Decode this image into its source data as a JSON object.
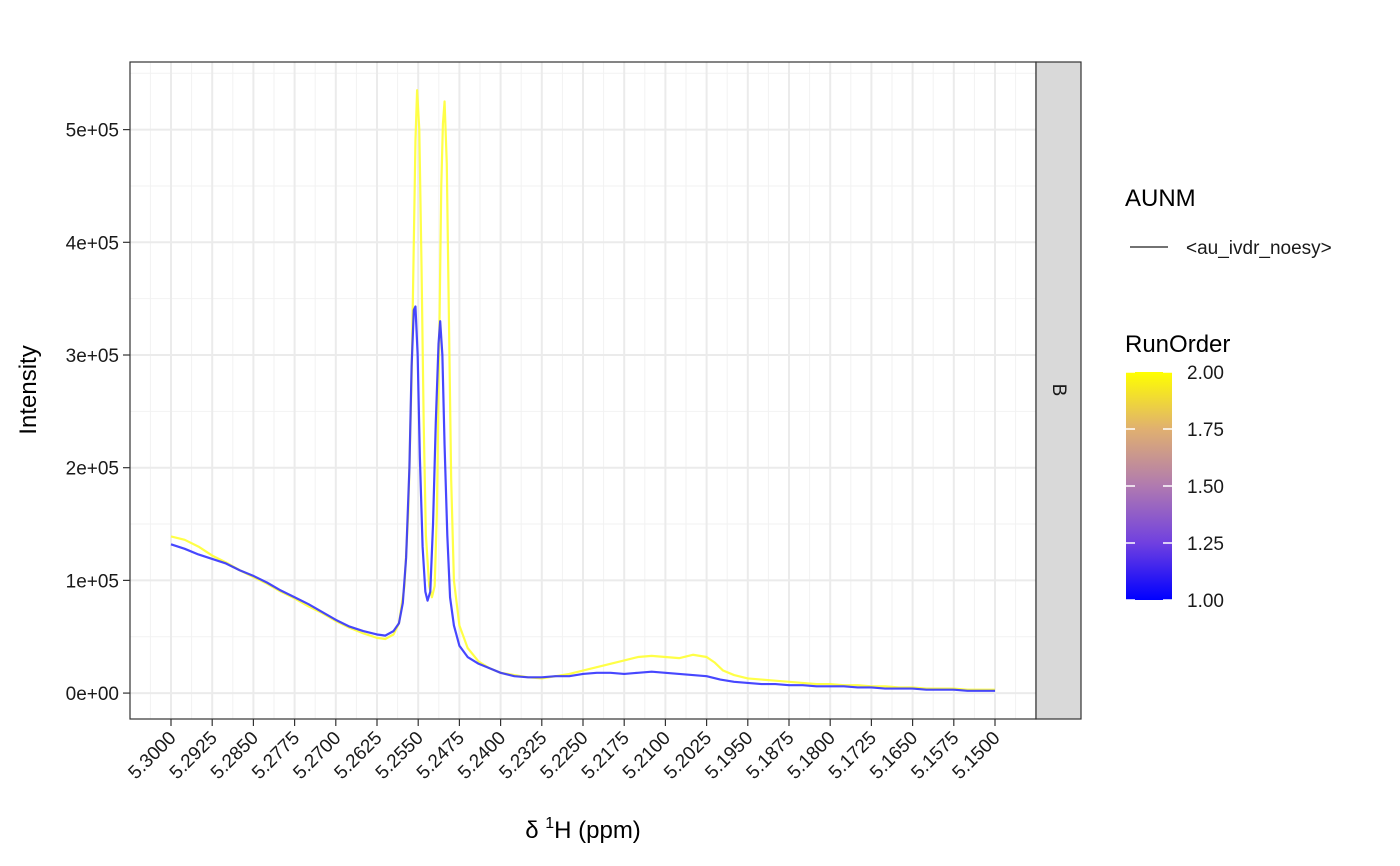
{
  "chart_data": {
    "type": "line",
    "xlabel": "δ ¹H (ppm)",
    "xlabel_main": "δ ",
    "xlabel_sup": "1",
    "xlabel_tail": "H (ppm)",
    "ylabel": "Intensity",
    "xlim": [
      5.3,
      5.15
    ],
    "x_reversed": true,
    "ylim": [
      -23000,
      560000
    ],
    "grid": true,
    "x_ticks": [
      "5.3000",
      "5.2925",
      "5.2850",
      "5.2775",
      "5.2700",
      "5.2625",
      "5.2550",
      "5.2475",
      "5.2400",
      "5.2325",
      "5.2250",
      "5.2175",
      "5.2100",
      "5.2025",
      "5.1950",
      "5.1875",
      "5.1800",
      "5.1725",
      "5.1650",
      "5.1575",
      "5.1500"
    ],
    "y_ticks": [
      {
        "value": 0,
        "label": "0e+00"
      },
      {
        "value": 100000,
        "label": "1e+05"
      },
      {
        "value": 200000,
        "label": "2e+05"
      },
      {
        "value": 300000,
        "label": "3e+05"
      },
      {
        "value": 400000,
        "label": "4e+05"
      },
      {
        "value": 500000,
        "label": "5e+05"
      }
    ],
    "facet_label": "B",
    "series": [
      {
        "run_order": 2.0,
        "color": "#ffff33",
        "points": [
          [
            5.3,
            139000
          ],
          [
            5.2975,
            136000
          ],
          [
            5.295,
            130000
          ],
          [
            5.2925,
            122000
          ],
          [
            5.29,
            116000
          ],
          [
            5.2875,
            109000
          ],
          [
            5.285,
            103000
          ],
          [
            5.2825,
            97000
          ],
          [
            5.28,
            90000
          ],
          [
            5.2775,
            84000
          ],
          [
            5.275,
            77000
          ],
          [
            5.2725,
            71000
          ],
          [
            5.27,
            64000
          ],
          [
            5.2675,
            58000
          ],
          [
            5.265,
            53000
          ],
          [
            5.2625,
            49000
          ],
          [
            5.261,
            48000
          ],
          [
            5.2595,
            52000
          ],
          [
            5.2585,
            62000
          ],
          [
            5.2575,
            95000
          ],
          [
            5.2568,
            160000
          ],
          [
            5.2562,
            280000
          ],
          [
            5.2558,
            400000
          ],
          [
            5.2555,
            490000
          ],
          [
            5.2552,
            535000
          ],
          [
            5.2548,
            500000
          ],
          [
            5.2544,
            380000
          ],
          [
            5.254,
            240000
          ],
          [
            5.2536,
            140000
          ],
          [
            5.253,
            95000
          ],
          [
            5.2525,
            85000
          ],
          [
            5.252,
            95000
          ],
          [
            5.2516,
            160000
          ],
          [
            5.2512,
            300000
          ],
          [
            5.2508,
            450000
          ],
          [
            5.2505,
            505000
          ],
          [
            5.2502,
            525000
          ],
          [
            5.2498,
            470000
          ],
          [
            5.2494,
            330000
          ],
          [
            5.249,
            190000
          ],
          [
            5.2485,
            100000
          ],
          [
            5.2475,
            60000
          ],
          [
            5.246,
            40000
          ],
          [
            5.244,
            28000
          ],
          [
            5.242,
            22000
          ],
          [
            5.24,
            18000
          ],
          [
            5.2375,
            16000
          ],
          [
            5.235,
            14000
          ],
          [
            5.2325,
            13000
          ],
          [
            5.23,
            15000
          ],
          [
            5.2275,
            17000
          ],
          [
            5.225,
            20000
          ],
          [
            5.2225,
            23000
          ],
          [
            5.22,
            26000
          ],
          [
            5.2175,
            29000
          ],
          [
            5.215,
            32000
          ],
          [
            5.2125,
            33000
          ],
          [
            5.21,
            32000
          ],
          [
            5.2075,
            31000
          ],
          [
            5.205,
            34000
          ],
          [
            5.2025,
            32000
          ],
          [
            5.201,
            27000
          ],
          [
            5.1995,
            20000
          ],
          [
            5.1975,
            16000
          ],
          [
            5.195,
            13000
          ],
          [
            5.1925,
            12000
          ],
          [
            5.19,
            11000
          ],
          [
            5.1875,
            10000
          ],
          [
            5.185,
            9000
          ],
          [
            5.1825,
            8000
          ],
          [
            5.18,
            8000
          ],
          [
            5.1775,
            7000
          ],
          [
            5.175,
            7000
          ],
          [
            5.1725,
            6000
          ],
          [
            5.17,
            6000
          ],
          [
            5.1675,
            5000
          ],
          [
            5.165,
            5000
          ],
          [
            5.1625,
            4000
          ],
          [
            5.16,
            4000
          ],
          [
            5.1575,
            4000
          ],
          [
            5.155,
            3000
          ],
          [
            5.1525,
            3000
          ],
          [
            5.15,
            3000
          ]
        ]
      },
      {
        "run_order": 1.0,
        "color": "#3333ff",
        "points": [
          [
            5.3,
            132000
          ],
          [
            5.2975,
            128000
          ],
          [
            5.295,
            123000
          ],
          [
            5.2925,
            119000
          ],
          [
            5.29,
            115000
          ],
          [
            5.2875,
            109000
          ],
          [
            5.285,
            104000
          ],
          [
            5.2825,
            98000
          ],
          [
            5.28,
            91000
          ],
          [
            5.2775,
            85000
          ],
          [
            5.275,
            79000
          ],
          [
            5.2725,
            72000
          ],
          [
            5.27,
            65000
          ],
          [
            5.2675,
            59000
          ],
          [
            5.265,
            55000
          ],
          [
            5.2625,
            52000
          ],
          [
            5.261,
            51000
          ],
          [
            5.2595,
            55000
          ],
          [
            5.2585,
            62000
          ],
          [
            5.2578,
            80000
          ],
          [
            5.2572,
            120000
          ],
          [
            5.2566,
            200000
          ],
          [
            5.2562,
            290000
          ],
          [
            5.2558,
            340000
          ],
          [
            5.2555,
            343000
          ],
          [
            5.2551,
            300000
          ],
          [
            5.2547,
            210000
          ],
          [
            5.2542,
            130000
          ],
          [
            5.2537,
            90000
          ],
          [
            5.2533,
            82000
          ],
          [
            5.2528,
            90000
          ],
          [
            5.2523,
            150000
          ],
          [
            5.2518,
            240000
          ],
          [
            5.2513,
            310000
          ],
          [
            5.251,
            330000
          ],
          [
            5.2506,
            300000
          ],
          [
            5.2502,
            220000
          ],
          [
            5.2497,
            140000
          ],
          [
            5.2492,
            85000
          ],
          [
            5.2485,
            60000
          ],
          [
            5.2475,
            42000
          ],
          [
            5.246,
            32000
          ],
          [
            5.244,
            26000
          ],
          [
            5.242,
            22000
          ],
          [
            5.24,
            18000
          ],
          [
            5.2375,
            15000
          ],
          [
            5.235,
            14000
          ],
          [
            5.2325,
            14000
          ],
          [
            5.23,
            15000
          ],
          [
            5.2275,
            15000
          ],
          [
            5.225,
            17000
          ],
          [
            5.2225,
            18000
          ],
          [
            5.22,
            18000
          ],
          [
            5.2175,
            17000
          ],
          [
            5.215,
            18000
          ],
          [
            5.2125,
            19000
          ],
          [
            5.21,
            18000
          ],
          [
            5.2075,
            17000
          ],
          [
            5.205,
            16000
          ],
          [
            5.2025,
            15000
          ],
          [
            5.2,
            12000
          ],
          [
            5.1975,
            10000
          ],
          [
            5.195,
            9000
          ],
          [
            5.1925,
            8000
          ],
          [
            5.19,
            8000
          ],
          [
            5.1875,
            7000
          ],
          [
            5.185,
            7000
          ],
          [
            5.1825,
            6000
          ],
          [
            5.18,
            6000
          ],
          [
            5.1775,
            6000
          ],
          [
            5.175,
            5000
          ],
          [
            5.1725,
            5000
          ],
          [
            5.17,
            4000
          ],
          [
            5.1675,
            4000
          ],
          [
            5.165,
            4000
          ],
          [
            5.1625,
            3000
          ],
          [
            5.16,
            3000
          ],
          [
            5.1575,
            3000
          ],
          [
            5.155,
            2000
          ],
          [
            5.1525,
            2000
          ],
          [
            5.15,
            2000
          ]
        ]
      }
    ],
    "legend": {
      "placement": "right",
      "linetype_title": "AUNM",
      "linetype_item": "<au_ivdr_noesy>",
      "color_title": "RunOrder",
      "color_range": [
        1.0,
        2.0
      ],
      "color_low": "#0000ff",
      "color_high": "#ffff00",
      "color_ticks": [
        {
          "value": 2.0,
          "label": "2.00"
        },
        {
          "value": 1.75,
          "label": "1.75"
        },
        {
          "value": 1.5,
          "label": "1.50"
        },
        {
          "value": 1.25,
          "label": "1.25"
        },
        {
          "value": 1.0,
          "label": "1.00"
        }
      ]
    }
  }
}
